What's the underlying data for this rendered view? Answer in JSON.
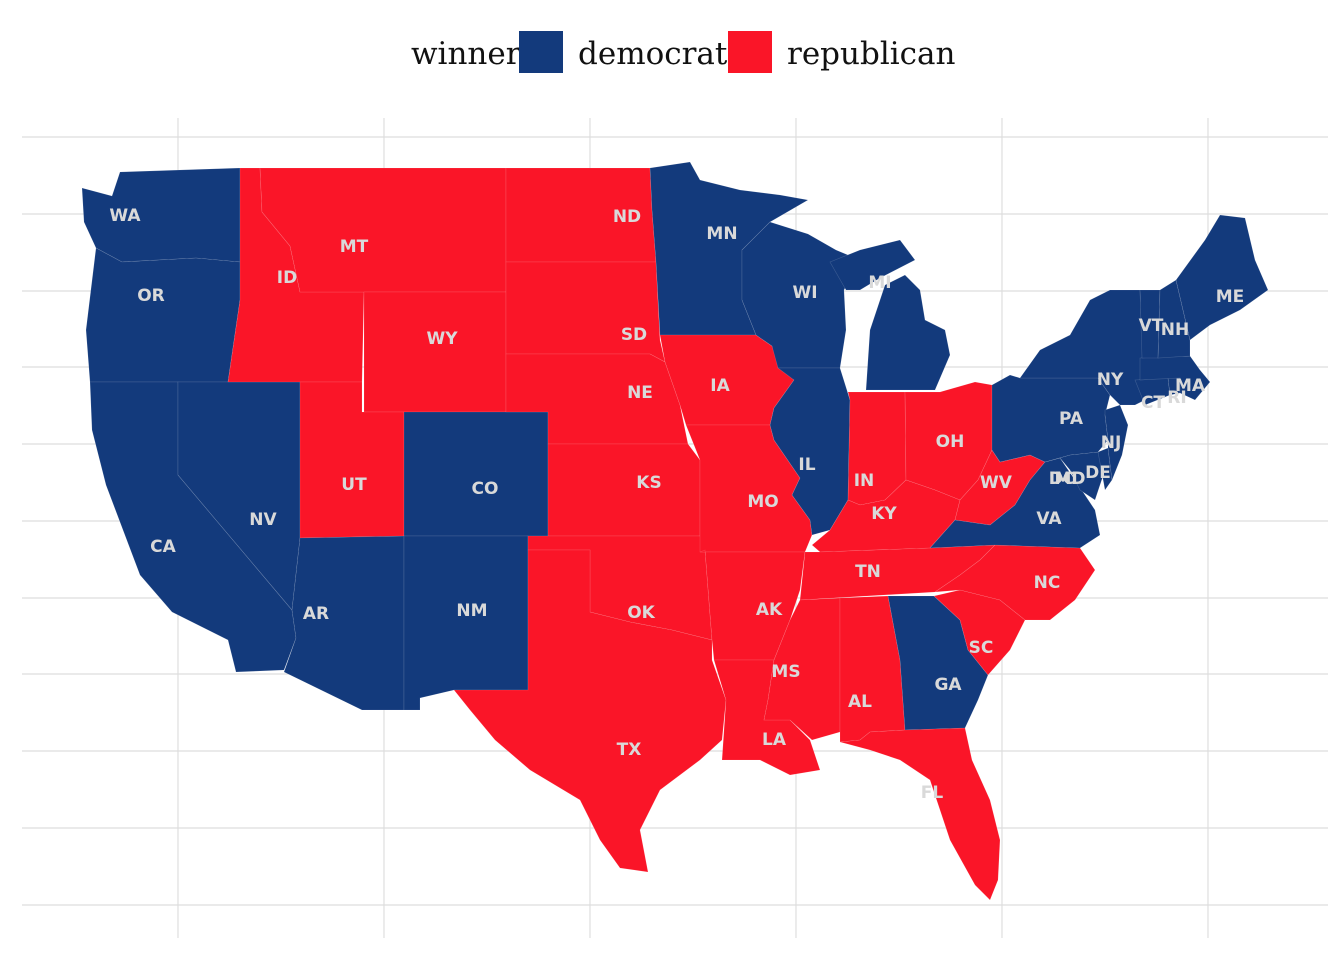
{
  "legend": {
    "title": "winner",
    "items": [
      {
        "key": "democrat",
        "label": "democrat",
        "color": "#133A7C"
      },
      {
        "key": "republican",
        "label": "republican",
        "color": "#FA1528"
      }
    ]
  },
  "states": [
    {
      "abbr": "WA",
      "winner": "democrat"
    },
    {
      "abbr": "OR",
      "winner": "democrat"
    },
    {
      "abbr": "CA",
      "winner": "democrat"
    },
    {
      "abbr": "NV",
      "winner": "democrat"
    },
    {
      "abbr": "AR",
      "winner": "democrat"
    },
    {
      "abbr": "NM",
      "winner": "democrat"
    },
    {
      "abbr": "CO",
      "winner": "democrat"
    },
    {
      "abbr": "MN",
      "winner": "democrat"
    },
    {
      "abbr": "WI",
      "winner": "democrat"
    },
    {
      "abbr": "MI",
      "winner": "democrat"
    },
    {
      "abbr": "IL",
      "winner": "democrat"
    },
    {
      "abbr": "GA",
      "winner": "democrat"
    },
    {
      "abbr": "VA",
      "winner": "democrat"
    },
    {
      "abbr": "PA",
      "winner": "democrat"
    },
    {
      "abbr": "NY",
      "winner": "democrat"
    },
    {
      "abbr": "NJ",
      "winner": "democrat"
    },
    {
      "abbr": "MD",
      "winner": "democrat"
    },
    {
      "abbr": "DE",
      "winner": "democrat"
    },
    {
      "abbr": "DC",
      "winner": "democrat"
    },
    {
      "abbr": "CT",
      "winner": "democrat"
    },
    {
      "abbr": "RI",
      "winner": "democrat"
    },
    {
      "abbr": "MA",
      "winner": "democrat"
    },
    {
      "abbr": "VT",
      "winner": "democrat"
    },
    {
      "abbr": "NH",
      "winner": "democrat"
    },
    {
      "abbr": "ME",
      "winner": "democrat"
    },
    {
      "abbr": "ID",
      "winner": "republican"
    },
    {
      "abbr": "MT",
      "winner": "republican"
    },
    {
      "abbr": "WY",
      "winner": "republican"
    },
    {
      "abbr": "UT",
      "winner": "republican"
    },
    {
      "abbr": "ND",
      "winner": "republican"
    },
    {
      "abbr": "SD",
      "winner": "republican"
    },
    {
      "abbr": "NE",
      "winner": "republican"
    },
    {
      "abbr": "KS",
      "winner": "republican"
    },
    {
      "abbr": "OK",
      "winner": "republican"
    },
    {
      "abbr": "TX",
      "winner": "republican"
    },
    {
      "abbr": "IA",
      "winner": "republican"
    },
    {
      "abbr": "MO",
      "winner": "republican"
    },
    {
      "abbr": "AK",
      "winner": "republican"
    },
    {
      "abbr": "LA",
      "winner": "republican"
    },
    {
      "abbr": "MS",
      "winner": "republican"
    },
    {
      "abbr": "AL",
      "winner": "republican"
    },
    {
      "abbr": "TN",
      "winner": "republican"
    },
    {
      "abbr": "KY",
      "winner": "republican"
    },
    {
      "abbr": "IN",
      "winner": "republican"
    },
    {
      "abbr": "OH",
      "winner": "republican"
    },
    {
      "abbr": "WV",
      "winner": "republican"
    },
    {
      "abbr": "NC",
      "winner": "republican"
    },
    {
      "abbr": "SC",
      "winner": "republican"
    },
    {
      "abbr": "FL",
      "winner": "republican"
    }
  ]
}
